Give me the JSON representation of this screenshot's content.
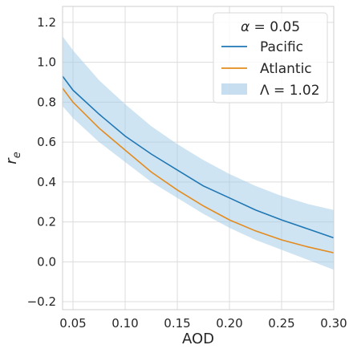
{
  "chart_data": {
    "type": "line",
    "title": "",
    "xlabel": "AOD",
    "ylabel": "r_e",
    "xlim": [
      0.04,
      0.3
    ],
    "ylim": [
      -0.24,
      1.28
    ],
    "x_ticks": [
      0.05,
      0.1,
      0.15,
      0.2,
      0.25,
      0.3
    ],
    "x_tick_labels": [
      "0.05",
      "0.10",
      "0.15",
      "0.20",
      "0.25",
      "0.30"
    ],
    "y_ticks": [
      -0.2,
      0.0,
      0.2,
      0.4,
      0.6,
      0.8,
      1.0,
      1.2
    ],
    "y_tick_labels": [
      "−0.2",
      "0.0",
      "0.2",
      "0.4",
      "0.6",
      "0.8",
      "1.0",
      "1.2"
    ],
    "grid": true,
    "legend": {
      "placement": "top-right",
      "title_symbol": "α",
      "title_value": "= 0.05",
      "band_symbol": "Λ",
      "band_value": "= 1.02"
    },
    "x": [
      0.04,
      0.05,
      0.075,
      0.1,
      0.125,
      0.15,
      0.175,
      0.2,
      0.225,
      0.25,
      0.275,
      0.3
    ],
    "series": [
      {
        "name": "Pacific",
        "color": "#1f77b4",
        "values": [
          0.93,
          0.86,
          0.74,
          0.63,
          0.54,
          0.46,
          0.38,
          0.32,
          0.26,
          0.21,
          0.165,
          0.12
        ]
      },
      {
        "name": "Atlantic",
        "color": "#e38b1e",
        "values": [
          0.87,
          0.8,
          0.67,
          0.56,
          0.45,
          0.36,
          0.28,
          0.21,
          0.155,
          0.11,
          0.075,
          0.045
        ]
      }
    ],
    "band": {
      "color": "#a8cde8",
      "upper": [
        1.13,
        1.06,
        0.91,
        0.79,
        0.68,
        0.59,
        0.51,
        0.44,
        0.38,
        0.33,
        0.29,
        0.26
      ],
      "lower": [
        0.78,
        0.72,
        0.6,
        0.5,
        0.4,
        0.32,
        0.24,
        0.17,
        0.11,
        0.06,
        0.01,
        -0.04
      ]
    }
  }
}
